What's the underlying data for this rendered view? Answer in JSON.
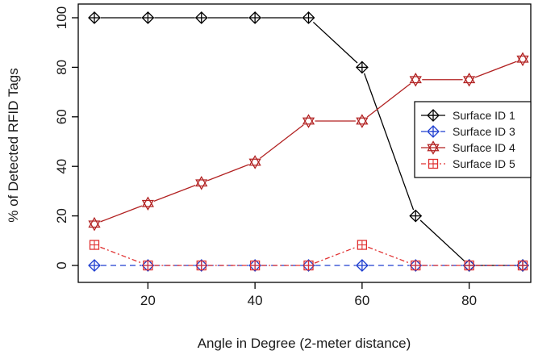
{
  "chart_data": {
    "type": "line",
    "title": "",
    "xlabel": "Angle in Degree (2-meter distance)",
    "ylabel": "% of Detected RFID Tags",
    "xlim": [
      10,
      90
    ],
    "ylim": [
      0,
      100
    ],
    "xticks": [
      20,
      40,
      60,
      80
    ],
    "yticks": [
      0,
      20,
      40,
      60,
      80,
      100
    ],
    "x": [
      10,
      20,
      30,
      40,
      50,
      60,
      70,
      80,
      90
    ],
    "grid": false,
    "legend_position": "right",
    "series": [
      {
        "name": "Surface ID 1",
        "values": [
          100,
          100,
          100,
          100,
          100,
          80,
          20,
          0,
          0
        ],
        "color": "#000000",
        "dash": "solid",
        "marker": "diamond-plus"
      },
      {
        "name": "Surface ID 3",
        "values": [
          0,
          0,
          0,
          0,
          0,
          0,
          0,
          0,
          0
        ],
        "color": "#1f3fd0",
        "dash": "dashed",
        "marker": "diamond-plus"
      },
      {
        "name": "Surface ID 4",
        "values": [
          16.7,
          25,
          33.3,
          41.7,
          58.3,
          58.3,
          75,
          75,
          83.3
        ],
        "color": "#b22222",
        "dash": "solid",
        "marker": "star-of-david"
      },
      {
        "name": "Surface ID 5",
        "values": [
          8.3,
          0,
          0,
          0,
          0,
          8.3,
          0,
          0,
          0
        ],
        "color": "#e03030",
        "dash": "dashdot",
        "marker": "square-plus"
      }
    ]
  }
}
